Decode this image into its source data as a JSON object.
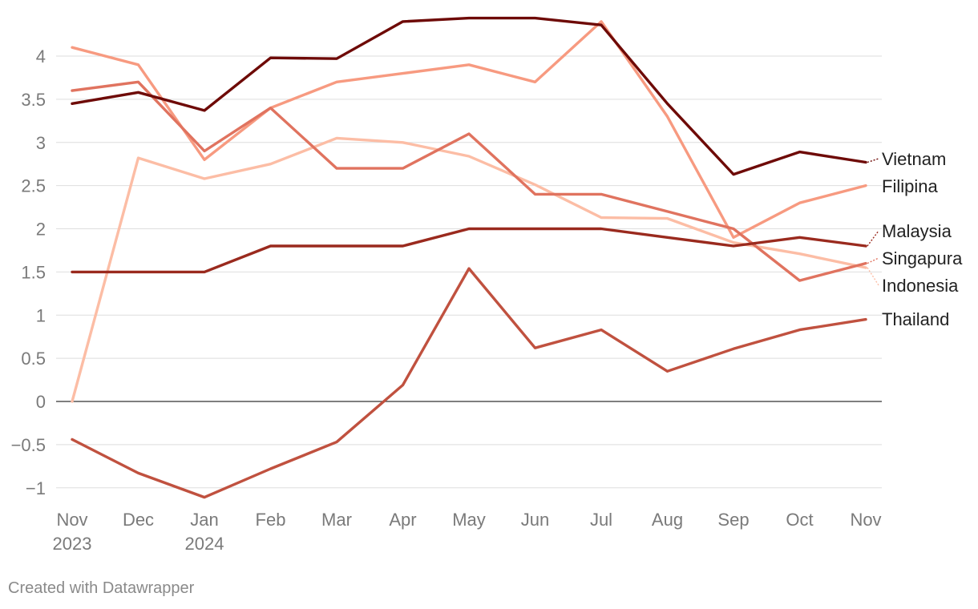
{
  "chart_data": {
    "type": "line",
    "x": [
      "Nov 2023",
      "Dec 2023",
      "Jan 2024",
      "Feb 2024",
      "Mar 2024",
      "Apr 2024",
      "May 2024",
      "Jun 2024",
      "Jul 2024",
      "Aug 2024",
      "Sep 2024",
      "Oct 2024",
      "Nov 2024"
    ],
    "x_tick_labels": [
      {
        "line1": "Nov",
        "line2": "2023"
      },
      {
        "line1": "Dec",
        "line2": ""
      },
      {
        "line1": "Jan",
        "line2": "2024"
      },
      {
        "line1": "Feb",
        "line2": ""
      },
      {
        "line1": "Mar",
        "line2": ""
      },
      {
        "line1": "Apr",
        "line2": ""
      },
      {
        "line1": "May",
        "line2": ""
      },
      {
        "line1": "Jun",
        "line2": ""
      },
      {
        "line1": "Jul",
        "line2": ""
      },
      {
        "line1": "Aug",
        "line2": ""
      },
      {
        "line1": "Sep",
        "line2": ""
      },
      {
        "line1": "Oct",
        "line2": ""
      },
      {
        "line1": "Nov",
        "line2": ""
      }
    ],
    "ylim": [
      -1.1,
      4.4
    ],
    "y_ticks": [
      -1,
      -0.5,
      0,
      0.5,
      1,
      1.5,
      2,
      2.5,
      3,
      3.5,
      4
    ],
    "y_tick_labels": [
      "−1",
      "−0.5",
      "0",
      "0.5",
      "1",
      "1.5",
      "2",
      "2.5",
      "3",
      "3.5",
      "4"
    ],
    "grid": true,
    "legend": "direct labels at right end of lines",
    "series": [
      {
        "name": "Indonesia",
        "color": "#fcbda5",
        "values": [
          0,
          2.82,
          2.58,
          2.75,
          3.05,
          3.0,
          2.84,
          2.51,
          2.13,
          2.12,
          1.84,
          1.71,
          1.55
        ]
      },
      {
        "name": "Filipina",
        "color": "#f79a80",
        "values": [
          4.1,
          3.9,
          2.8,
          3.4,
          3.7,
          3.8,
          3.9,
          3.7,
          4.4,
          3.3,
          1.9,
          2.3,
          2.5
        ]
      },
      {
        "name": "Singapura",
        "color": "#e0735f",
        "values": [
          3.6,
          3.7,
          2.9,
          3.4,
          2.7,
          2.7,
          3.1,
          2.4,
          2.4,
          2.2,
          2.0,
          1.4,
          1.6
        ]
      },
      {
        "name": "Thailand",
        "color": "#c0513f",
        "values": [
          -0.44,
          -0.83,
          -1.11,
          -0.78,
          -0.47,
          0.19,
          1.54,
          0.62,
          0.83,
          0.35,
          0.61,
          0.83,
          0.95
        ]
      },
      {
        "name": "Malaysia",
        "color": "#9a2a1e",
        "values": [
          1.5,
          1.5,
          1.5,
          1.8,
          1.8,
          1.8,
          2.0,
          2.0,
          2.0,
          1.9,
          1.8,
          1.9,
          1.8
        ]
      },
      {
        "name": "Vietnam",
        "color": "#6e0a07",
        "values": [
          3.45,
          3.58,
          3.37,
          3.98,
          3.97,
          4.4,
          4.44,
          4.44,
          4.36,
          3.45,
          2.63,
          2.89,
          2.77
        ]
      }
    ]
  },
  "footer": {
    "credit": "Created with Datawrapper"
  }
}
